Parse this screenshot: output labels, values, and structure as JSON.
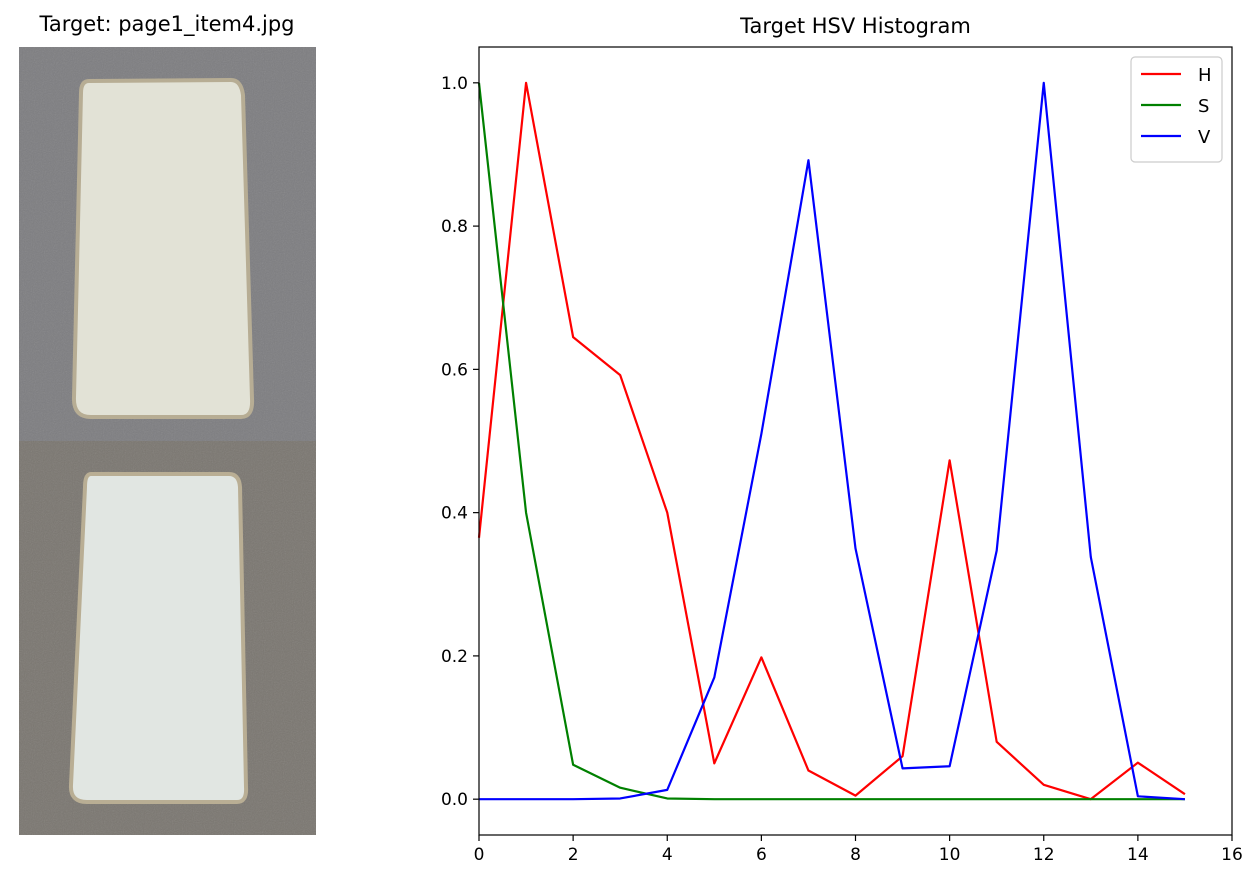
{
  "left_panel": {
    "title": "Target: page1_item4.jpg"
  },
  "chart_data": {
    "type": "line",
    "title": "Target HSV Histogram",
    "xlabel": "",
    "ylabel": "",
    "xlim": [
      0,
      16
    ],
    "ylim": [
      -0.05,
      1.05
    ],
    "x_ticks": [
      0,
      2,
      4,
      6,
      8,
      10,
      12,
      14,
      16
    ],
    "y_ticks": [
      0.0,
      0.2,
      0.4,
      0.6,
      0.8,
      1.0
    ],
    "x_tick_labels": [
      "0",
      "2",
      "4",
      "6",
      "8",
      "10",
      "12",
      "14",
      "16"
    ],
    "y_tick_labels": [
      "0.0",
      "0.2",
      "0.4",
      "0.6",
      "0.8",
      "1.0"
    ],
    "grid": false,
    "legend": "top-right",
    "x": [
      0,
      1,
      2,
      3,
      4,
      5,
      6,
      7,
      8,
      9,
      10,
      11,
      12,
      13,
      14,
      15
    ],
    "series": [
      {
        "name": "H",
        "color": "#ff0000",
        "values": [
          0.365,
          1.0,
          0.645,
          0.592,
          0.4,
          0.05,
          0.198,
          0.04,
          0.005,
          0.06,
          0.473,
          0.08,
          0.02,
          0.0,
          0.051,
          0.007
        ]
      },
      {
        "name": "S",
        "color": "#008000",
        "values": [
          1.0,
          0.4,
          0.048,
          0.016,
          0.001,
          0.0,
          0.0,
          0.0,
          0.0,
          0.0,
          0.0,
          0.0,
          0.0,
          0.0,
          0.0,
          0.0
        ]
      },
      {
        "name": "V",
        "color": "#0000ff",
        "values": [
          0.0,
          0.0,
          0.0,
          0.001,
          0.013,
          0.17,
          0.51,
          0.892,
          0.35,
          0.043,
          0.046,
          0.347,
          1.0,
          0.338,
          0.004,
          0.0
        ]
      }
    ]
  }
}
